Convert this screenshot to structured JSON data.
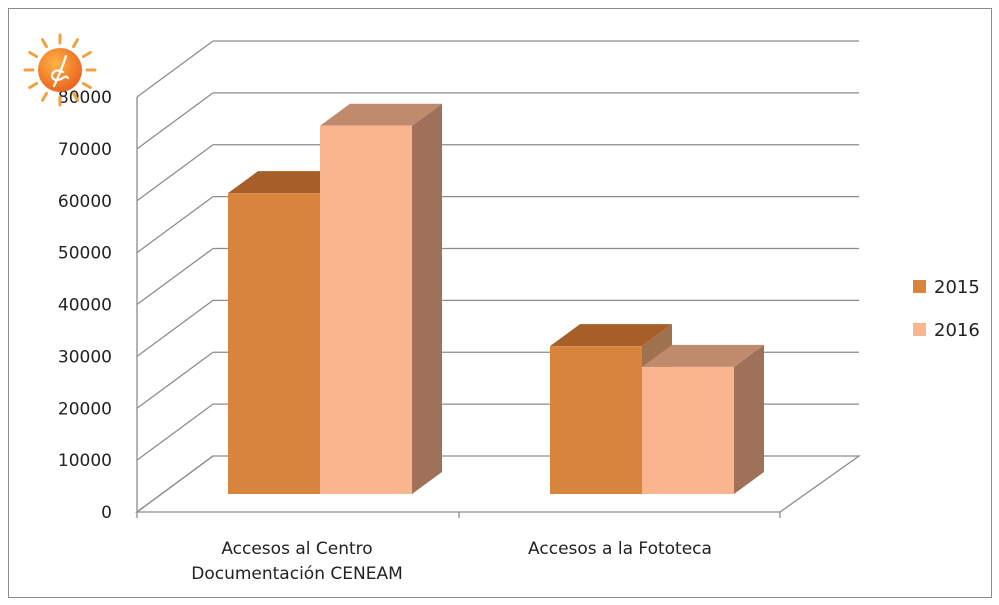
{
  "chart_data": {
    "type": "bar",
    "categories": [
      "Accesos al Centro\nDocumentación CENEAM",
      "Accesos a la Fototeca"
    ],
    "series": [
      {
        "name": "2015",
        "values": [
          58000,
          28500
        ]
      },
      {
        "name": "2016",
        "values": [
          71000,
          24500
        ]
      }
    ],
    "yticks": [
      0,
      10000,
      20000,
      30000,
      40000,
      50000,
      60000,
      70000,
      80000
    ],
    "ylim": [
      0,
      80000
    ],
    "grid": true,
    "legend": "right",
    "colors": {
      "2015": {
        "front": "#d9843c",
        "top": "#a65f28",
        "side": "#a0714e"
      },
      "2016": {
        "front": "#f9b58e",
        "top": "#c08a6c",
        "side": "#a0715a"
      }
    },
    "icon": "sun-logo-icon"
  }
}
